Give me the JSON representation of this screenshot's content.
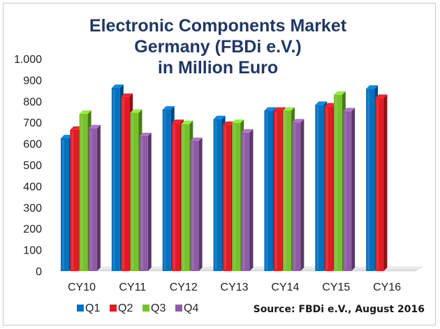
{
  "chart_data": {
    "type": "bar",
    "title_lines": [
      "Electronic Components Market",
      "Germany (FBDi e.V.)",
      "in Million Euro"
    ],
    "categories": [
      "CY10",
      "CY11",
      "CY12",
      "CY13",
      "CY14",
      "CY15",
      "CY16"
    ],
    "series": [
      {
        "name": "Q1",
        "color": "#0070c0",
        "values": [
          625,
          862,
          760,
          715,
          755,
          782,
          858
        ]
      },
      {
        "name": "Q2",
        "color": "#e31b23",
        "values": [
          665,
          820,
          697,
          688,
          755,
          775,
          815
        ]
      },
      {
        "name": "Q3",
        "color": "#76c22c",
        "values": [
          740,
          745,
          692,
          697,
          755,
          830,
          null
        ]
      },
      {
        "name": "Q4",
        "color": "#8e5ba6",
        "values": [
          672,
          635,
          612,
          652,
          700,
          752,
          null
        ]
      }
    ],
    "ylim": [
      0,
      1000
    ],
    "yticks": [
      0,
      100,
      200,
      300,
      400,
      500,
      600,
      700,
      800,
      900,
      1000
    ],
    "ytick_labels": [
      "0",
      "100",
      "200",
      "300",
      "400",
      "500",
      "600",
      "700",
      "800",
      "900",
      "1.000"
    ],
    "grid": false,
    "legend_position": "bottom-left",
    "source_note": "Source: FBDi e.V., August 2016"
  }
}
